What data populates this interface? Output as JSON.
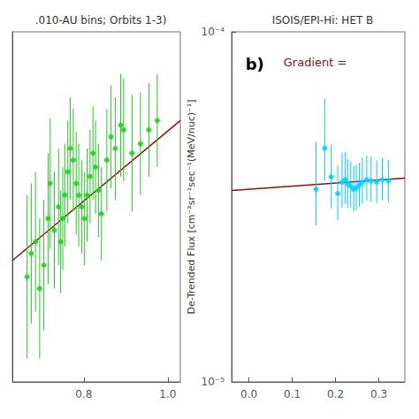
{
  "chart_data": [
    {
      "type": "scatter",
      "title": ".010-AU bins; Orbits 1-3)",
      "xlim": [
        0.63,
        1.03
      ],
      "xticks": [
        0.8,
        {
          "value": 1.0,
          "label": "1.0"
        }
      ],
      "ylim": [
        3.5e-05,
        5e-05
      ],
      "yticks": [],
      "tick_labels": "x",
      "grid": false,
      "series": [
        {
          "type": "scatter",
          "marker": "circle",
          "color": "#22cc22",
          "x": [
            0.665,
            0.675,
            0.685,
            0.695,
            0.705,
            0.715,
            0.72,
            0.73,
            0.74,
            0.745,
            0.75,
            0.755,
            0.762,
            0.768,
            0.775,
            0.782,
            0.788,
            0.795,
            0.802,
            0.808,
            0.815,
            0.822,
            0.828,
            0.835,
            0.842,
            0.855,
            0.865,
            0.875,
            0.888,
            0.895,
            0.915,
            0.935,
            0.955,
            0.975
          ],
          "values": [
            3.95e-05,
            4.05e-05,
            4.1e-05,
            3.9e-05,
            4e-05,
            4.2e-05,
            4.35e-05,
            4.15e-05,
            4.25e-05,
            4.1e-05,
            4.2e-05,
            4.3e-05,
            4.4e-05,
            4.5e-05,
            4.45e-05,
            4.35e-05,
            4.3e-05,
            4.25e-05,
            4.2e-05,
            4.3e-05,
            4.38e-05,
            4.48e-05,
            4.42e-05,
            4.32e-05,
            4.22e-05,
            4.45e-05,
            4.55e-05,
            4.5e-05,
            4.6e-05,
            4.58e-05,
            4.48e-05,
            4.52e-05,
            4.58e-05,
            4.62e-05
          ],
          "y_err": [
            3.5e-06,
            3e-06,
            3e-06,
            3e-06,
            2.8e-06,
            2.8e-06,
            2.8e-06,
            2.5e-06,
            2.5e-06,
            2.2e-06,
            2.2e-06,
            2.2e-06,
            2.2e-06,
            2.2e-06,
            2.2e-06,
            2.2e-06,
            2.2e-06,
            2e-06,
            2e-06,
            2e-06,
            2e-06,
            2e-06,
            2e-06,
            2e-06,
            2e-06,
            2.2e-06,
            2.2e-06,
            2.2e-06,
            2.2e-06,
            2.2e-06,
            2.5e-06,
            2.2e-06,
            2e-06,
            2e-06
          ],
          "x_err": [
            0.005,
            0.005,
            0.005,
            0.005,
            0.005,
            0.005,
            0.005,
            0.005,
            0.005,
            0.005,
            0.005,
            0.005,
            0.005,
            0.005,
            0.005,
            0.005,
            0.005,
            0.005,
            0.005,
            0.005,
            0.005,
            0.005,
            0.005,
            0.005,
            0.005,
            0.005,
            0.005,
            0.005,
            0.005,
            0.005,
            0.005,
            0.005,
            0.005,
            0.005
          ]
        },
        {
          "type": "line",
          "color": "#8B1010",
          "x": [
            0.63,
            1.03
          ],
          "values": [
            4.02e-05,
            4.62e-05
          ]
        }
      ]
    },
    {
      "type": "scatter",
      "title": "ISOIS/EPI-Hi: HET B",
      "ylabel": "De-Trended Flux [cm⁻²sr⁻¹sec⁻¹(MeV/nuc)⁻¹]",
      "log": "y",
      "xlim": [
        -0.04,
        0.36
      ],
      "xticks": [
        {
          "value": 0.0,
          "label": "0.0"
        },
        0.1,
        0.2,
        0.3
      ],
      "ylim": [
        1e-05,
        0.0001
      ],
      "yticks": [
        {
          "value": 1e-05,
          "label": "10⁻⁵"
        },
        {
          "value": 0.0001,
          "label": "10⁻⁴"
        }
      ],
      "grid": false,
      "annotations": [
        {
          "text": "b)"
        },
        {
          "text": "Gradient =",
          "color": "#8B1010"
        }
      ],
      "series": [
        {
          "type": "scatter",
          "marker": "circle",
          "color": "#00cfff",
          "x": [
            0.155,
            0.175,
            0.19,
            0.205,
            0.215,
            0.222,
            0.228,
            0.235,
            0.242,
            0.248,
            0.255,
            0.262,
            0.272,
            0.282,
            0.295,
            0.308,
            0.322
          ],
          "values": [
            3.55e-05,
            4.65e-05,
            3.85e-05,
            3.45e-05,
            3.72e-05,
            3.78e-05,
            3.68e-05,
            3.62e-05,
            3.55e-05,
            3.58e-05,
            3.65e-05,
            3.72e-05,
            3.78e-05,
            3.75e-05,
            3.72e-05,
            3.78e-05,
            3.75e-05
          ],
          "y_err_up": [
            1.3e-05,
            1.8e-05,
            9e-06,
            7e-06,
            8e-06,
            7.5e-06,
            6.5e-06,
            6.5e-06,
            5.8e-06,
            5.8e-06,
            5.8e-06,
            6.5e-06,
            6.5e-06,
            6.5e-06,
            5.8e-06,
            5.8e-06,
            5.5e-06
          ],
          "y_err_down": [
            7.5e-06,
            9e-06,
            7.2e-06,
            5.5e-06,
            5.8e-06,
            5.5e-06,
            5.5e-06,
            4.8e-06,
            4.8e-06,
            4.8e-06,
            4.8e-06,
            4.8e-06,
            4.8e-06,
            4.8e-06,
            4.8e-06,
            4.8e-06,
            4.8e-06
          ],
          "x_err": [
            0.005,
            0.005,
            0.005,
            0.005,
            0.005,
            0.005,
            0.005,
            0.005,
            0.005,
            0.005,
            0.005,
            0.005,
            0.005,
            0.005,
            0.005,
            0.005,
            0.005
          ]
        },
        {
          "type": "line",
          "color": "#8B1010",
          "x": [
            -0.04,
            0.36
          ],
          "values": [
            3.52e-05,
            3.82e-05
          ]
        }
      ]
    }
  ]
}
